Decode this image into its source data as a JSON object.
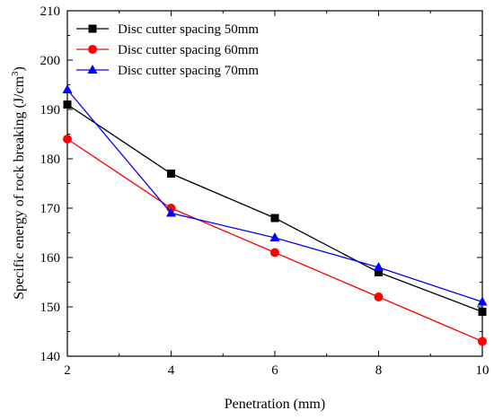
{
  "chart_data": {
    "type": "line",
    "xlabel": "Penetration (mm)",
    "ylabel": "Specific energy of rock breaking (J/cm",
    "ylabel_superscript": "3",
    "ylabel_suffix": ")",
    "xlim": [
      2,
      10
    ],
    "ylim": [
      140,
      210
    ],
    "x_ticks": [
      2,
      4,
      6,
      8,
      10
    ],
    "y_ticks": [
      140,
      150,
      160,
      170,
      180,
      190,
      200,
      210
    ],
    "x": [
      2,
      4,
      6,
      8,
      10
    ],
    "grid": false,
    "legend_position": "top-left",
    "series": [
      {
        "name": "Disc cutter spacing 50mm",
        "color": "#000000",
        "marker": "square",
        "values": [
          191,
          177,
          168,
          157,
          149
        ]
      },
      {
        "name": "Disc cutter spacing 60mm",
        "color": "#ff0000",
        "marker": "circle",
        "values": [
          184,
          170,
          161,
          152,
          143
        ]
      },
      {
        "name": "Disc cutter spacing 70mm",
        "color": "#0000ff",
        "marker": "triangle",
        "values": [
          194,
          169,
          164,
          158,
          151
        ]
      }
    ]
  }
}
